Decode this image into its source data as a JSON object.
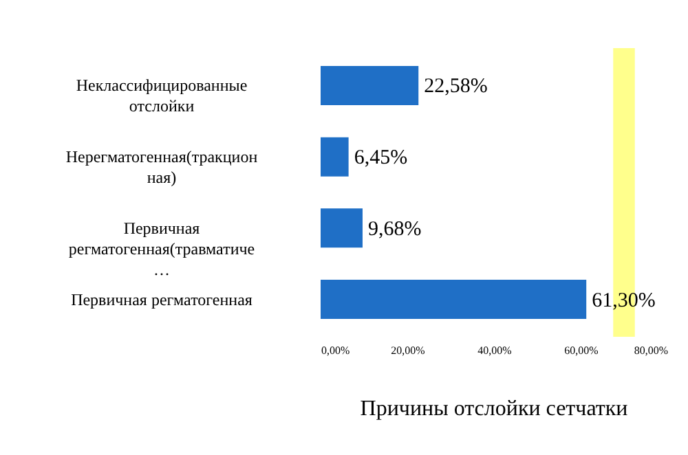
{
  "chart_data": {
    "type": "bar",
    "orientation": "horizontal",
    "title": "Причины отслойки сетчатки",
    "categories": [
      "Неклассифицированные отслойки",
      "Нерегматогенная(тракционная)",
      "Первичная регматогенная(травматиче…",
      "Первичная  регматогенная"
    ],
    "values": [
      22.58,
      6.45,
      9.68,
      61.3
    ],
    "value_labels": [
      "22,58%",
      "6,45%",
      "9,68%",
      "61,30%"
    ],
    "color": "#1f6fc6",
    "xlim": [
      0,
      80
    ],
    "xticks": [
      {
        "value": 0,
        "label": "0,00%"
      },
      {
        "value": 20,
        "label": "20,00%"
      },
      {
        "value": 40,
        "label": "40,00%"
      },
      {
        "value": 60,
        "label": "60,00%"
      },
      {
        "value": 80,
        "label": "80,00%"
      }
    ],
    "bands": [
      {
        "axis": "x",
        "from": 67.5,
        "to": 72.5,
        "color": "#ffff80"
      }
    ],
    "grid": false
  }
}
